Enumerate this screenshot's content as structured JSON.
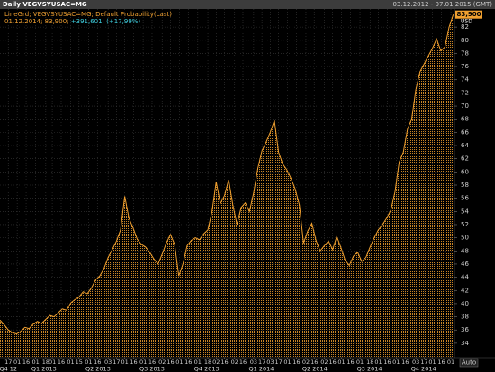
{
  "chart_data": {
    "type": "area",
    "header": "Daily VEGVSYUSAC=MG",
    "date_range": "03.12.2012 - 07.01.2015 (GMT)",
    "legend_line1": "LineGrd; VEGVSYUSAC=MG; Default Probability(Last)",
    "legend_line2": "01.12.2014; 83,900;",
    "legend_change": "+391,601; (+17,99%)",
    "currency": "USD",
    "scale_mode": "Auto",
    "last_value": {
      "value": 83.9,
      "label": "83,900"
    },
    "color": "#f0a030",
    "grid": true,
    "x": [
      0,
      7,
      14,
      21,
      28,
      35,
      42,
      49,
      56,
      63,
      70,
      77,
      84,
      91,
      98,
      105,
      112,
      119,
      126,
      133,
      140,
      147,
      154,
      161,
      168,
      175,
      182,
      189,
      196,
      203,
      210,
      217,
      224,
      231,
      238,
      245,
      252,
      259,
      266,
      273,
      280,
      287,
      294,
      301,
      308,
      315,
      322,
      329,
      336,
      343,
      350,
      357,
      364,
      371,
      378,
      385,
      392,
      399,
      406,
      413,
      420,
      427,
      434,
      441,
      448,
      455,
      462,
      469,
      476,
      483,
      490,
      497,
      504,
      511,
      518,
      525,
      532,
      539,
      546,
      553,
      560,
      567,
      574,
      581,
      588,
      595,
      602,
      609,
      616,
      623,
      630,
      637,
      644,
      651,
      658,
      665,
      672,
      679,
      686,
      693,
      700,
      707,
      714,
      721,
      728,
      735,
      742,
      749,
      756,
      763
    ],
    "values": [
      37.5,
      36.8,
      36.0,
      35.6,
      35.4,
      35.8,
      36.4,
      36.2,
      36.9,
      37.3,
      37.0,
      37.6,
      38.2,
      38.0,
      38.6,
      39.2,
      39.0,
      40.1,
      40.6,
      41.0,
      41.8,
      41.5,
      42.4,
      43.6,
      44.2,
      45.3,
      47.0,
      48.2,
      49.5,
      51.2,
      56.3,
      53.0,
      51.5,
      49.8,
      49.0,
      48.6,
      47.8,
      46.8,
      46.0,
      47.5,
      49.2,
      50.5,
      49.0,
      44.2,
      46.0,
      48.8,
      49.6,
      50.0,
      49.7,
      50.6,
      51.2,
      54.0,
      58.5,
      55.2,
      56.4,
      58.8,
      55.0,
      52.0,
      54.6,
      55.3,
      54.0,
      56.8,
      60.5,
      63.2,
      64.5,
      66.0,
      67.8,
      63.0,
      61.2,
      60.3,
      59.0,
      57.4,
      55.0,
      49.2,
      51.0,
      52.2,
      49.6,
      48.0,
      48.8,
      49.5,
      48.2,
      50.2,
      48.5,
      46.6,
      45.8,
      47.2,
      47.8,
      46.4,
      47.0,
      48.6,
      50.0,
      51.2,
      52.0,
      53.0,
      54.2,
      57.0,
      61.5,
      63.0,
      66.5,
      68.0,
      72.5,
      75.2,
      76.4,
      77.6,
      78.8,
      80.2,
      78.4,
      79.0,
      82.0,
      83.9
    ],
    "xlim": [
      0,
      765
    ],
    "xticks": [
      {
        "value": 14,
        "label": "17"
      },
      {
        "value": 29,
        "label": "01"
      },
      {
        "value": 44,
        "label": "16"
      },
      {
        "value": 60,
        "label": "01"
      },
      {
        "value": 77,
        "label": "18"
      },
      {
        "value": 88,
        "label": "01"
      },
      {
        "value": 103,
        "label": "16"
      },
      {
        "value": 119,
        "label": "01"
      },
      {
        "value": 133,
        "label": "15"
      },
      {
        "value": 149,
        "label": "01"
      },
      {
        "value": 164,
        "label": "16"
      },
      {
        "value": 182,
        "label": "03"
      },
      {
        "value": 196,
        "label": "17"
      },
      {
        "value": 210,
        "label": "01"
      },
      {
        "value": 225,
        "label": "16"
      },
      {
        "value": 241,
        "label": "01"
      },
      {
        "value": 256,
        "label": "16"
      },
      {
        "value": 273,
        "label": "02"
      },
      {
        "value": 287,
        "label": "16"
      },
      {
        "value": 302,
        "label": "01"
      },
      {
        "value": 317,
        "label": "16"
      },
      {
        "value": 333,
        "label": "01"
      },
      {
        "value": 350,
        "label": "18"
      },
      {
        "value": 364,
        "label": "02"
      },
      {
        "value": 378,
        "label": "16"
      },
      {
        "value": 395,
        "label": "02"
      },
      {
        "value": 409,
        "label": "16"
      },
      {
        "value": 427,
        "label": "03"
      },
      {
        "value": 441,
        "label": "17"
      },
      {
        "value": 455,
        "label": "03"
      },
      {
        "value": 469,
        "label": "17"
      },
      {
        "value": 484,
        "label": "01"
      },
      {
        "value": 499,
        "label": "16"
      },
      {
        "value": 515,
        "label": "02"
      },
      {
        "value": 529,
        "label": "16"
      },
      {
        "value": 546,
        "label": "02"
      },
      {
        "value": 560,
        "label": "16"
      },
      {
        "value": 575,
        "label": "01"
      },
      {
        "value": 590,
        "label": "16"
      },
      {
        "value": 606,
        "label": "01"
      },
      {
        "value": 623,
        "label": "18"
      },
      {
        "value": 637,
        "label": "01"
      },
      {
        "value": 652,
        "label": "16"
      },
      {
        "value": 667,
        "label": "01"
      },
      {
        "value": 682,
        "label": "16"
      },
      {
        "value": 700,
        "label": "03"
      },
      {
        "value": 714,
        "label": "17"
      },
      {
        "value": 728,
        "label": "01"
      },
      {
        "value": 743,
        "label": "16"
      },
      {
        "value": 759,
        "label": "01"
      }
    ],
    "quarters": [
      {
        "value": 14,
        "label": "Q4 12"
      },
      {
        "value": 74,
        "label": "Q1 2013"
      },
      {
        "value": 165,
        "label": "Q2 2013"
      },
      {
        "value": 256,
        "label": "Q3 2013"
      },
      {
        "value": 348,
        "label": "Q4 2013"
      },
      {
        "value": 440,
        "label": "Q1 2014"
      },
      {
        "value": 530,
        "label": "Q2 2014"
      },
      {
        "value": 622,
        "label": "Q3 2014"
      },
      {
        "value": 713,
        "label": "Q4 2014"
      }
    ],
    "ylim": [
      31.8,
      84.2
    ],
    "yticks": [
      34,
      36,
      38,
      40,
      42,
      44,
      46,
      48,
      50,
      52,
      54,
      56,
      58,
      60,
      62,
      64,
      66,
      68,
      70,
      72,
      74,
      76,
      78,
      80,
      82
    ]
  }
}
